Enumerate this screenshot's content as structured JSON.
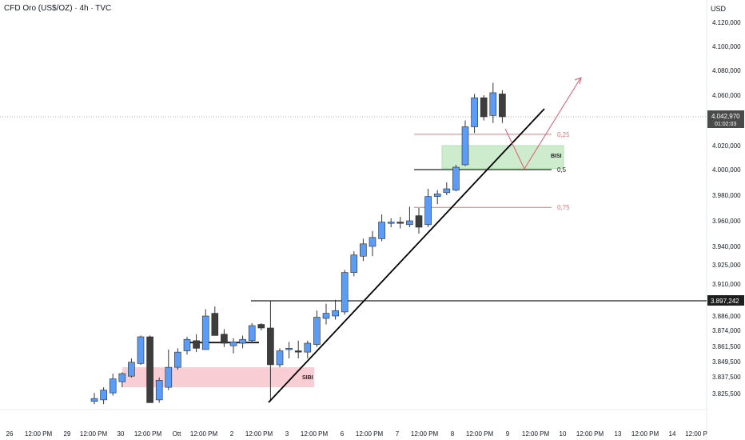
{
  "header": {
    "symbol_title": "CFD Oro (US$/OZ) · 4h · TVC",
    "currency": "USD"
  },
  "chart_data": {
    "type": "candlestick",
    "x_tick_labels": [
      "26",
      "12:00 PM",
      "29",
      "12:00 PM",
      "30",
      "12:00 PM",
      "Ott",
      "12:00 PM",
      "2",
      "12:00 PM",
      "3",
      "12:00 PM",
      "6",
      "12:00 PM",
      "7",
      "12:00 PM",
      "8",
      "12:00 PM",
      "9",
      "12:00 PM",
      "10",
      "12:00 PM",
      "13",
      "12:00 PM",
      "14",
      "12:00 P"
    ],
    "y_tick_labels": [
      "4.120,000",
      "4.100,000",
      "4.080,000",
      "4.060,000",
      "4.020,000",
      "4.000,000",
      "3.980,000",
      "3.960,000",
      "3.940,000",
      "3.925,000",
      "3.910,000",
      "3.886,000",
      "3.874,000",
      "3.861,500",
      "3.849,500",
      "3.837,500",
      "3.825,500"
    ],
    "current_price": {
      "label": "4.042,970",
      "countdown": "01:02:03"
    },
    "level_label": "3.897,242",
    "colors": {
      "up": "#5b9cf6",
      "down": "#3d3d3d",
      "fib": "#e57373",
      "zone_green": "#cdeccd",
      "zone_red": "#f8cdd3"
    },
    "candles": [
      {
        "o": 3820.0,
        "h": 3826.0,
        "l": 3818.0,
        "c": 3822.0
      },
      {
        "o": 3821.0,
        "h": 3830.0,
        "l": 3818.0,
        "c": 3828.0
      },
      {
        "o": 3826.0,
        "h": 3840.0,
        "l": 3824.0,
        "c": 3836.0
      },
      {
        "o": 3834.0,
        "h": 3841.0,
        "l": 3830.0,
        "c": 3840.0
      },
      {
        "o": 3838.0,
        "h": 3852.0,
        "l": 3837.0,
        "c": 3849.0
      },
      {
        "o": 3848.0,
        "h": 3870.0,
        "l": 3847.0,
        "c": 3869.0
      },
      {
        "o": 3869.0,
        "h": 3870.0,
        "l": 3819.0,
        "c": 3819.0
      },
      {
        "o": 3821.0,
        "h": 3837.0,
        "l": 3819.0,
        "c": 3835.0
      },
      {
        "o": 3830.0,
        "h": 3859.0,
        "l": 3828.0,
        "c": 3845.0
      },
      {
        "o": 3845.0,
        "h": 3860.0,
        "l": 3843.0,
        "c": 3857.0
      },
      {
        "o": 3858.0,
        "h": 3869.0,
        "l": 3855.0,
        "c": 3867.0
      },
      {
        "o": 3866.0,
        "h": 3871.0,
        "l": 3857.0,
        "c": 3860.0
      },
      {
        "o": 3859.0,
        "h": 3891.0,
        "l": 3859.0,
        "c": 3886.0
      },
      {
        "o": 3888.0,
        "h": 3893.0,
        "l": 3870.0,
        "c": 3870.0
      },
      {
        "o": 3871.0,
        "h": 3875.0,
        "l": 3861.0,
        "c": 3864.0
      },
      {
        "o": 3862.0,
        "h": 3868.0,
        "l": 3856.0,
        "c": 3865.0
      },
      {
        "o": 3864.0,
        "h": 3870.0,
        "l": 3860.0,
        "c": 3867.0
      },
      {
        "o": 3866.0,
        "h": 3880.0,
        "l": 3864.0,
        "c": 3878.0
      },
      {
        "o": 3879.0,
        "h": 3880.0,
        "l": 3874.0,
        "c": 3876.0
      },
      {
        "o": 3876.0,
        "h": 3897.0,
        "l": 3820.0,
        "c": 3847.0
      },
      {
        "o": 3847.0,
        "h": 3860.0,
        "l": 3845.0,
        "c": 3858.0
      },
      {
        "o": 3859.0,
        "h": 3865.0,
        "l": 3852.0,
        "c": 3860.0
      },
      {
        "o": 3858.0,
        "h": 3866.0,
        "l": 3852.0,
        "c": 3857.0
      },
      {
        "o": 3857.0,
        "h": 3866.0,
        "l": 3852.0,
        "c": 3864.0
      },
      {
        "o": 3863.0,
        "h": 3890.0,
        "l": 3861.0,
        "c": 3885.0
      },
      {
        "o": 3884.0,
        "h": 3895.0,
        "l": 3879.0,
        "c": 3888.0
      },
      {
        "o": 3886.0,
        "h": 3898.0,
        "l": 3883.0,
        "c": 3890.0
      },
      {
        "o": 3889.0,
        "h": 3921.0,
        "l": 3887.0,
        "c": 3919.0
      },
      {
        "o": 3919.0,
        "h": 3936.0,
        "l": 3916.0,
        "c": 3933.0
      },
      {
        "o": 3932.0,
        "h": 3946.0,
        "l": 3928.0,
        "c": 3942.0
      },
      {
        "o": 3940.0,
        "h": 3952.0,
        "l": 3932.0,
        "c": 3947.0
      },
      {
        "o": 3946.0,
        "h": 3965.0,
        "l": 3944.0,
        "c": 3959.0
      },
      {
        "o": 3958.0,
        "h": 3962.0,
        "l": 3955.0,
        "c": 3959.0
      },
      {
        "o": 3959.0,
        "h": 3963.0,
        "l": 3954.0,
        "c": 3958.0
      },
      {
        "o": 3957.0,
        "h": 3971.0,
        "l": 3955.0,
        "c": 3960.0
      },
      {
        "o": 3964.0,
        "h": 3970.0,
        "l": 3950.0,
        "c": 3955.0
      },
      {
        "o": 3957.0,
        "h": 3985.0,
        "l": 3955.0,
        "c": 3979.0
      },
      {
        "o": 3979.0,
        "h": 3984.0,
        "l": 3973.0,
        "c": 3981.0
      },
      {
        "o": 3982.0,
        "h": 3990.0,
        "l": 3980.0,
        "c": 3985.0
      },
      {
        "o": 3984.0,
        "h": 4004.0,
        "l": 3983.0,
        "c": 4002.0
      },
      {
        "o": 4004.0,
        "h": 4040.0,
        "l": 4003.0,
        "c": 4035.0
      },
      {
        "o": 4035.0,
        "h": 4061.0,
        "l": 4030.0,
        "c": 4058.0
      },
      {
        "o": 4058.0,
        "h": 4060.0,
        "l": 4040.0,
        "c": 4043.0
      },
      {
        "o": 4044.0,
        "h": 4070.0,
        "l": 4038.0,
        "c": 4062.0
      },
      {
        "o": 4061.0,
        "h": 4064.0,
        "l": 4038.0,
        "c": 4043.0
      }
    ],
    "annotations": {
      "fib_025": "0,25",
      "fib_05": "0,5",
      "fib_075": "0,75",
      "bisi": "BISI",
      "sibi": "SIBI"
    }
  }
}
